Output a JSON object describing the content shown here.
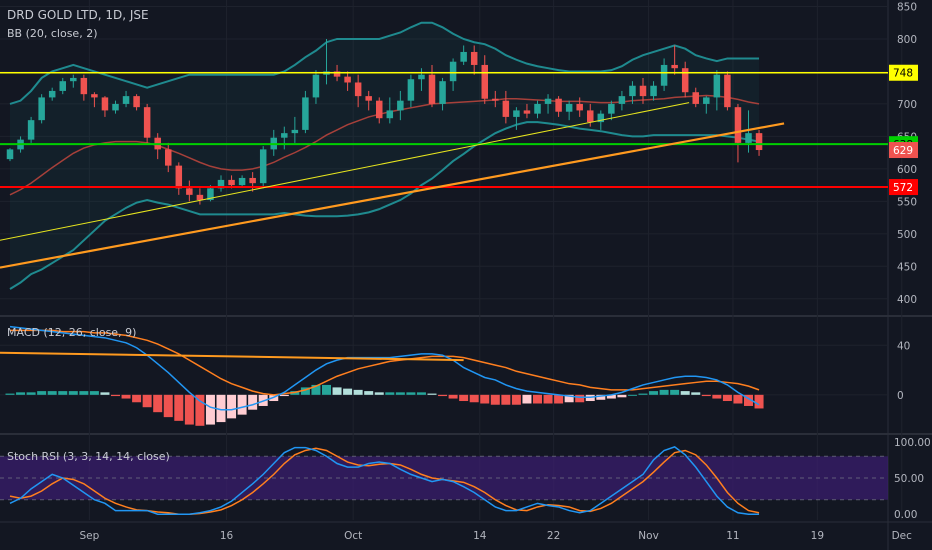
{
  "header": {
    "symbol_line": "DRD GOLD LTD, 1D, JSE",
    "bb_label": "BB (20, close, 2)"
  },
  "panes": {
    "macd_label": "MACD (12, 26, close, 9)",
    "stoch_label": "Stoch RSI (3, 3, 14, 14, close)"
  },
  "colors": {
    "background": "#131722",
    "up": "#26a69a",
    "down": "#ef5350",
    "bb_band": "#1f8a8f",
    "bb_basis": "#a6403a",
    "support_green": "#00d000",
    "resistance_yellow": "#ffff00",
    "support_red": "#ff0000",
    "trend_orange": "#ff9a1f",
    "macd_line": "#2196f3",
    "signal_line": "#ff7f1f",
    "stoch_fill": "#3a1e6e"
  },
  "chart_data": [
    {
      "type": "candlestick",
      "title": "DRD GOLD LTD, 1D, JSE",
      "y_axis": {
        "ticks": [
          400,
          450,
          500,
          550,
          600,
          650,
          700,
          750,
          800,
          850
        ],
        "range": [
          375,
          860
        ]
      },
      "x_axis": {
        "tick_labels": [
          "Sep",
          "16",
          "Oct",
          "14",
          "22",
          "Nov",
          "11",
          "19",
          "Dec"
        ]
      },
      "price_labels": [
        {
          "value": 748,
          "text": "748",
          "color": "#ffff00",
          "text_color": "#000000"
        },
        {
          "value": 638,
          "text": "638",
          "color": "#00d000",
          "text_color": "#000000"
        },
        {
          "value": 629,
          "text": "629",
          "color": "#ef5350",
          "text_color": "#ffffff"
        },
        {
          "value": 572,
          "text": "572",
          "color": "#ff0000",
          "text_color": "#ffffff"
        }
      ],
      "horizontal_lines": [
        {
          "value": 748,
          "color": "#ffff00"
        },
        {
          "value": 638,
          "color": "#00d000"
        },
        {
          "value": 572,
          "color": "#ff0000"
        }
      ],
      "trend_lines": [
        {
          "color": "#ff9a1f",
          "from": [
            0,
            448
          ],
          "to": [
            71,
            670
          ]
        },
        {
          "color": "#e8e61e",
          "from": [
            0,
            490
          ],
          "to": [
            62,
            702
          ]
        }
      ],
      "candles": [
        [
          615,
          632,
          612,
          630
        ],
        [
          630,
          650,
          625,
          645
        ],
        [
          645,
          680,
          640,
          675
        ],
        [
          675,
          715,
          670,
          710
        ],
        [
          710,
          725,
          705,
          720
        ],
        [
          720,
          740,
          715,
          735
        ],
        [
          735,
          745,
          725,
          740
        ],
        [
          740,
          745,
          705,
          715
        ],
        [
          715,
          718,
          695,
          710
        ],
        [
          710,
          712,
          680,
          690
        ],
        [
          690,
          705,
          685,
          700
        ],
        [
          700,
          720,
          695,
          712
        ],
        [
          712,
          715,
          690,
          695
        ],
        [
          695,
          700,
          640,
          648
        ],
        [
          648,
          655,
          615,
          630
        ],
        [
          630,
          640,
          595,
          605
        ],
        [
          605,
          610,
          560,
          570
        ],
        [
          570,
          582,
          550,
          560
        ],
        [
          560,
          570,
          545,
          552
        ],
        [
          552,
          575,
          550,
          570
        ],
        [
          570,
          590,
          565,
          583
        ],
        [
          583,
          590,
          570,
          575
        ],
        [
          575,
          590,
          572,
          586
        ],
        [
          586,
          595,
          565,
          578
        ],
        [
          578,
          635,
          570,
          630
        ],
        [
          630,
          660,
          620,
          648
        ],
        [
          648,
          665,
          630,
          655
        ],
        [
          655,
          680,
          640,
          660
        ],
        [
          660,
          720,
          655,
          710
        ],
        [
          710,
          752,
          700,
          745
        ],
        [
          745,
          800,
          730,
          750
        ],
        [
          750,
          760,
          735,
          742
        ],
        [
          742,
          750,
          720,
          733
        ],
        [
          733,
          745,
          695,
          712
        ],
        [
          712,
          720,
          690,
          705
        ],
        [
          705,
          710,
          670,
          678
        ],
        [
          678,
          710,
          670,
          690
        ],
        [
          690,
          720,
          675,
          705
        ],
        [
          705,
          745,
          695,
          738
        ],
        [
          738,
          755,
          720,
          745
        ],
        [
          745,
          760,
          695,
          700
        ],
        [
          700,
          740,
          690,
          735
        ],
        [
          735,
          770,
          720,
          765
        ],
        [
          765,
          790,
          760,
          780
        ],
        [
          780,
          790,
          745,
          760
        ],
        [
          760,
          775,
          700,
          708
        ],
        [
          708,
          720,
          695,
          705
        ],
        [
          705,
          720,
          670,
          680
        ],
        [
          680,
          695,
          660,
          690
        ],
        [
          690,
          700,
          678,
          685
        ],
        [
          685,
          705,
          678,
          700
        ],
        [
          700,
          715,
          685,
          708
        ],
        [
          708,
          712,
          680,
          688
        ],
        [
          688,
          705,
          675,
          700
        ],
        [
          700,
          710,
          680,
          690
        ],
        [
          690,
          700,
          665,
          672
        ],
        [
          672,
          690,
          660,
          685
        ],
        [
          685,
          705,
          675,
          700
        ],
        [
          700,
          720,
          690,
          712
        ],
        [
          712,
          735,
          700,
          728
        ],
        [
          728,
          740,
          700,
          712
        ],
        [
          712,
          735,
          705,
          728
        ],
        [
          728,
          770,
          720,
          760
        ],
        [
          760,
          790,
          745,
          755
        ],
        [
          755,
          765,
          710,
          718
        ],
        [
          718,
          725,
          695,
          700
        ],
        [
          700,
          712,
          685,
          710
        ],
        [
          710,
          752,
          690,
          745
        ],
        [
          745,
          750,
          690,
          695
        ],
        [
          695,
          700,
          610,
          640
        ],
        [
          640,
          690,
          625,
          655
        ],
        [
          655,
          660,
          620,
          629
        ]
      ],
      "bollinger": {
        "period": 20,
        "stddev": 2,
        "upper": [
          700,
          705,
          720,
          740,
          750,
          755,
          760,
          755,
          750,
          745,
          740,
          735,
          730,
          725,
          730,
          735,
          740,
          745,
          745,
          745,
          745,
          745,
          745,
          745,
          745,
          745,
          750,
          760,
          772,
          782,
          795,
          800,
          800,
          800,
          800,
          800,
          805,
          810,
          818,
          825,
          825,
          818,
          808,
          800,
          795,
          792,
          785,
          775,
          768,
          762,
          758,
          755,
          752,
          750,
          750,
          750,
          750,
          752,
          758,
          768,
          775,
          780,
          785,
          790,
          785,
          775,
          770,
          766,
          770,
          770,
          770,
          770
        ],
        "basis": [
          560,
          568,
          578,
          590,
          602,
          613,
          624,
          632,
          637,
          640,
          642,
          642,
          642,
          640,
          636,
          630,
          624,
          617,
          610,
          604,
          600,
          598,
          598,
          600,
          604,
          610,
          618,
          625,
          633,
          642,
          652,
          660,
          668,
          674,
          680,
          684,
          688,
          691,
          694,
          697,
          700,
          701,
          702,
          703,
          704,
          705,
          706,
          708,
          708,
          707,
          706,
          705,
          704,
          704,
          704,
          703,
          702,
          702,
          703,
          705,
          706,
          707,
          708,
          710,
          711,
          712,
          713,
          712,
          710,
          707,
          703,
          700
        ],
        "lower": [
          415,
          425,
          438,
          445,
          455,
          465,
          475,
          490,
          505,
          520,
          530,
          540,
          548,
          552,
          548,
          545,
          540,
          535,
          530,
          530,
          530,
          530,
          530,
          530,
          530,
          530,
          532,
          530,
          528,
          527,
          527,
          527,
          528,
          530,
          533,
          538,
          545,
          552,
          562,
          575,
          585,
          598,
          612,
          623,
          635,
          645,
          655,
          662,
          668,
          672,
          672,
          670,
          668,
          665,
          662,
          660,
          658,
          655,
          652,
          650,
          650,
          652,
          652,
          652,
          652,
          652,
          652,
          652,
          650,
          648,
          645,
          642
        ]
      }
    },
    {
      "type": "macd",
      "label": "MACD (12, 26, close, 9)",
      "params": [
        12,
        26,
        9
      ],
      "y_axis": {
        "ticks": [
          40,
          0
        ],
        "range": [
          -30,
          62
        ]
      },
      "macd": [
        55,
        54,
        53,
        52,
        51,
        50,
        49,
        48,
        47,
        46,
        44,
        42,
        38,
        32,
        25,
        18,
        10,
        2,
        -5,
        -10,
        -12,
        -12,
        -10,
        -8,
        -5,
        -2,
        2,
        8,
        14,
        20,
        25,
        28,
        30,
        30,
        30,
        30,
        30,
        31,
        32,
        33,
        33,
        32,
        28,
        22,
        18,
        14,
        12,
        8,
        5,
        3,
        2,
        1,
        0,
        -1,
        -2,
        -2,
        -1,
        0,
        2,
        5,
        8,
        10,
        12,
        14,
        15,
        15,
        14,
        12,
        8,
        2,
        -3,
        -8
      ],
      "signal": [
        52,
        52,
        52,
        52,
        52,
        51,
        51,
        51,
        50,
        50,
        49,
        48,
        46,
        44,
        41,
        37,
        33,
        28,
        23,
        18,
        13,
        9,
        6,
        3,
        1,
        0,
        1,
        2,
        4,
        7,
        11,
        15,
        18,
        21,
        23,
        25,
        27,
        28,
        29,
        30,
        31,
        31,
        31,
        30,
        28,
        26,
        24,
        22,
        19,
        17,
        15,
        13,
        11,
        9,
        8,
        6,
        5,
        4,
        4,
        4,
        5,
        6,
        7,
        8,
        9,
        10,
        11,
        11,
        10,
        9,
        7,
        4
      ],
      "histogram": [
        1,
        2,
        2,
        3,
        3,
        3,
        3,
        3,
        3,
        2,
        -1,
        -3,
        -6,
        -10,
        -14,
        -18,
        -21,
        -24,
        -25,
        -24,
        -22,
        -19,
        -16,
        -12,
        -9,
        -5,
        -1,
        3,
        6,
        8,
        8,
        6,
        5,
        4,
        3,
        2,
        2,
        2,
        2,
        2,
        1,
        -1,
        -3,
        -5,
        -6,
        -7,
        -8,
        -8,
        -8,
        -7,
        -7,
        -7,
        -7,
        -6,
        -6,
        -5,
        -4,
        -3,
        -2,
        0,
        1,
        3,
        4,
        4,
        3,
        2,
        -1,
        -3,
        -5,
        -7,
        -9,
        -11
      ],
      "trend_lines": [
        {
          "color": "#ff9a1f",
          "from": [
            0,
            34
          ],
          "to": [
            43,
            28
          ]
        }
      ]
    },
    {
      "type": "stochastic_rsi",
      "label": "Stoch RSI (3, 3, 14, 14, close)",
      "params": [
        3,
        3,
        14,
        14
      ],
      "y_axis": {
        "ticks": [
          100,
          50,
          0
        ],
        "labels": [
          "100.00",
          "50.00",
          "0.00"
        ],
        "range": [
          -8,
          108
        ]
      },
      "bands": [
        80,
        20
      ],
      "k": [
        15,
        22,
        35,
        45,
        55,
        50,
        40,
        30,
        20,
        15,
        5,
        5,
        5,
        5,
        0,
        0,
        0,
        0,
        2,
        5,
        10,
        18,
        30,
        42,
        55,
        70,
        85,
        92,
        92,
        88,
        80,
        70,
        65,
        65,
        70,
        72,
        70,
        62,
        55,
        50,
        45,
        48,
        45,
        38,
        30,
        20,
        10,
        5,
        5,
        10,
        15,
        12,
        10,
        5,
        2,
        5,
        15,
        25,
        35,
        45,
        55,
        75,
        88,
        93,
        82,
        65,
        45,
        25,
        10,
        2,
        0,
        0
      ],
      "d": [
        25,
        22,
        25,
        32,
        42,
        50,
        48,
        42,
        32,
        22,
        15,
        10,
        6,
        5,
        3,
        2,
        0,
        0,
        1,
        3,
        6,
        12,
        20,
        30,
        42,
        55,
        70,
        82,
        88,
        91,
        88,
        80,
        72,
        68,
        67,
        69,
        70,
        68,
        62,
        55,
        50,
        48,
        46,
        44,
        38,
        30,
        20,
        12,
        6,
        5,
        10,
        13,
        12,
        10,
        5,
        4,
        8,
        15,
        25,
        35,
        45,
        58,
        72,
        85,
        88,
        82,
        68,
        50,
        30,
        15,
        5,
        2
      ]
    }
  ]
}
